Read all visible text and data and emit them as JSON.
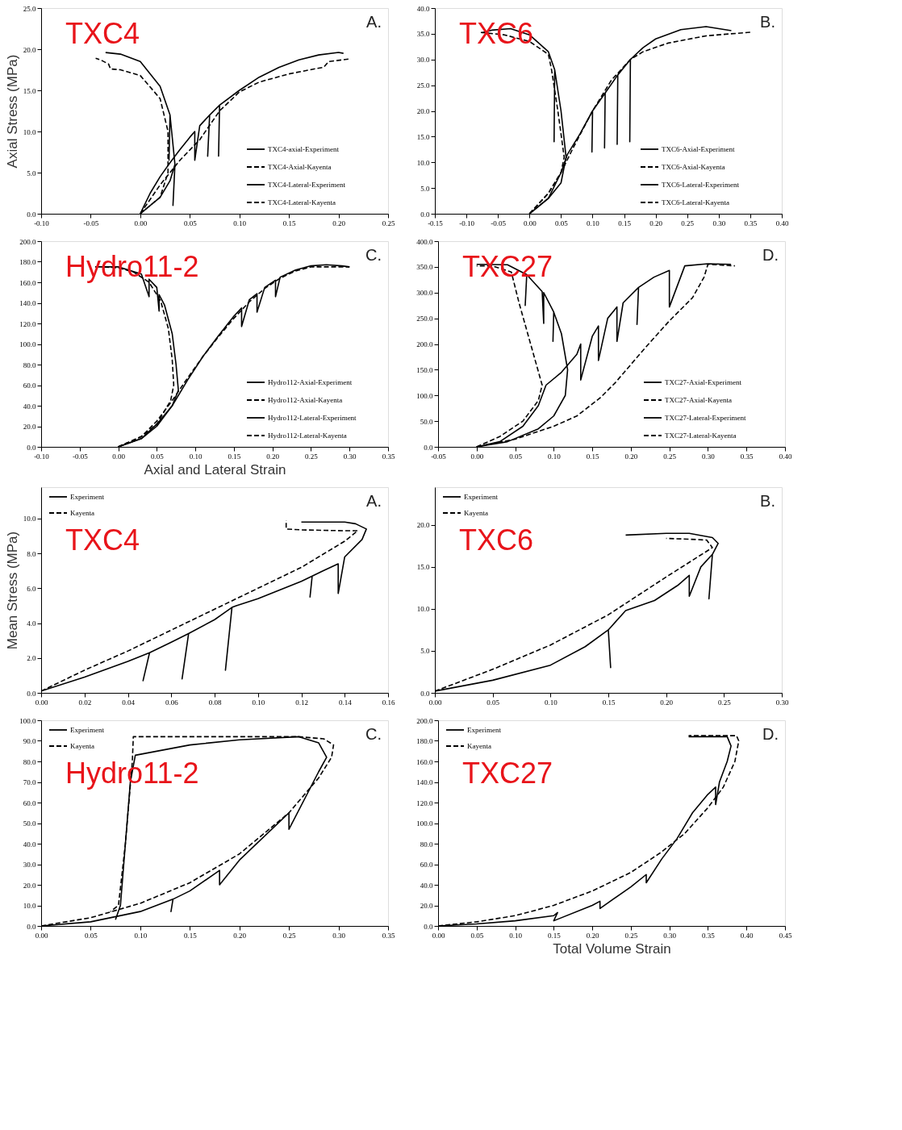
{
  "chart_data": [
    {
      "type": "line",
      "ylabel": "Axial Stress (MPa)",
      "annotations": [
        "A.",
        "TXC4"
      ],
      "legend": "bottom right",
      "xlim": [
        -0.1,
        0.25
      ],
      "ylim": [
        0,
        25
      ],
      "xticks": [
        {
          "value": -0.1,
          "label": "-0.10"
        },
        {
          "value": -0.05,
          "label": "-0.05"
        },
        {
          "value": 0,
          "label": "0.00"
        },
        {
          "value": 0.05,
          "label": "0.05"
        },
        {
          "value": 0.1,
          "label": "0.10"
        },
        {
          "value": 0.15,
          "label": "0.15"
        },
        {
          "value": 0.2,
          "label": "0.20"
        },
        {
          "value": 0.25,
          "label": "0.25"
        }
      ],
      "yticks": [
        {
          "value": 0,
          "label": "0.0"
        },
        {
          "value": 5,
          "label": "5.0"
        },
        {
          "value": 10,
          "label": "10.0"
        },
        {
          "value": 15,
          "label": "15.0"
        },
        {
          "value": 20,
          "label": "20.0"
        },
        {
          "value": 25,
          "label": "25.0"
        }
      ],
      "series": [
        {
          "name": "TXC4-axial-Experiment",
          "color": "#000000",
          "line_style": "solid",
          "x": [
            0,
            0.01,
            0.02,
            0.03,
            0.04,
            0.05,
            0.055,
            0.055,
            0.06,
            0.07,
            0.068,
            0.07,
            0.08,
            0.079,
            0.08,
            0.1,
            0.12,
            0.14,
            0.16,
            0.18,
            0.2,
            0.205
          ],
          "values": [
            0,
            2.5,
            4.5,
            6.2,
            7.8,
            9.3,
            10.0,
            6.5,
            10.7,
            12.0,
            7.0,
            12.0,
            13.2,
            7.0,
            13.2,
            15.0,
            16.6,
            17.8,
            18.7,
            19.3,
            19.6,
            19.5
          ]
        },
        {
          "name": "TXC4-Axial-Kayenta",
          "color": "#000000",
          "line_style": "dashed",
          "x": [
            0,
            0.02,
            0.04,
            0.06,
            0.08,
            0.1,
            0.12,
            0.15,
            0.18,
            0.185,
            0.19,
            0.21
          ],
          "values": [
            0,
            3.5,
            6.5,
            9,
            12.5,
            14.8,
            16,
            17,
            17.7,
            17.8,
            18.5,
            18.8
          ]
        },
        {
          "name": "TXC4-Lateral-Experiment",
          "color": "#000000",
          "line_style": "solid",
          "x": [
            0,
            0.02,
            0.03,
            0.035,
            0.033,
            0.035,
            0.03,
            0.029,
            0.03,
            0.02,
            0.0,
            -0.02,
            -0.035
          ],
          "values": [
            0,
            2,
            4,
            6,
            1,
            6,
            12,
            6.5,
            12,
            15.5,
            18.5,
            19.4,
            19.6
          ]
        },
        {
          "name": "TXC4-Lateral-Kayenta",
          "color": "#000000",
          "line_style": "dashed",
          "x": [
            0,
            0.02,
            0.028,
            0.028,
            0.02,
            0.0,
            -0.02,
            -0.03,
            -0.032,
            -0.04,
            -0.045
          ],
          "values": [
            0,
            2,
            5,
            10,
            14,
            16.8,
            17.5,
            17.6,
            18.2,
            18.7,
            18.9
          ]
        }
      ]
    },
    {
      "type": "line",
      "annotations": [
        "B.",
        "TXC6"
      ],
      "legend": "bottom right",
      "xlim": [
        -0.15,
        0.4
      ],
      "ylim": [
        0,
        40
      ],
      "xticks": [
        {
          "value": -0.15,
          "label": "-0.15"
        },
        {
          "value": -0.1,
          "label": "-0.10"
        },
        {
          "value": -0.05,
          "label": "-0.05"
        },
        {
          "value": 0,
          "label": "0.00"
        },
        {
          "value": 0.05,
          "label": "0.05"
        },
        {
          "value": 0.1,
          "label": "0.10"
        },
        {
          "value": 0.15,
          "label": "0.15"
        },
        {
          "value": 0.2,
          "label": "0.20"
        },
        {
          "value": 0.25,
          "label": "0.25"
        },
        {
          "value": 0.3,
          "label": "0.30"
        },
        {
          "value": 0.35,
          "label": "0.35"
        },
        {
          "value": 0.4,
          "label": "0.40"
        }
      ],
      "yticks": [
        {
          "value": 0,
          "label": "0.0"
        },
        {
          "value": 5,
          "label": "5.0"
        },
        {
          "value": 10,
          "label": "10.0"
        },
        {
          "value": 15,
          "label": "15.0"
        },
        {
          "value": 20,
          "label": "20.0"
        },
        {
          "value": 25,
          "label": "25.0"
        },
        {
          "value": 30,
          "label": "30.0"
        },
        {
          "value": 35,
          "label": "35.0"
        },
        {
          "value": 40,
          "label": "40.0"
        }
      ],
      "series": [
        {
          "name": "TXC6-Axial-Experiment",
          "color": "#000000",
          "line_style": "solid",
          "x": [
            0,
            0.03,
            0.05,
            0.06,
            0.08,
            0.1,
            0.099,
            0.1,
            0.12,
            0.119,
            0.12,
            0.14,
            0.139,
            0.14,
            0.16,
            0.159,
            0.16,
            0.18,
            0.2,
            0.24,
            0.28,
            0.32
          ],
          "values": [
            0,
            3,
            8,
            11.5,
            15.5,
            20,
            12,
            20,
            23.5,
            12.8,
            23.5,
            27,
            13.5,
            27,
            30,
            14,
            30,
            32.3,
            34,
            35.8,
            36.4,
            35.6
          ]
        },
        {
          "name": "TXC6-Axial-Kayenta",
          "color": "#000000",
          "line_style": "dashed",
          "x": [
            0,
            0.03,
            0.05,
            0.07,
            0.1,
            0.13,
            0.16,
            0.18,
            0.22,
            0.28,
            0.35
          ],
          "values": [
            0,
            4,
            8,
            13,
            20,
            26,
            30,
            31.5,
            33.2,
            34.6,
            35.3
          ]
        },
        {
          "name": "TXC6-Lateral-Experiment",
          "color": "#000000",
          "line_style": "solid",
          "x": [
            0,
            0.03,
            0.05,
            0.058,
            0.05,
            0.04,
            0.039,
            0.04,
            0.03,
            0.0,
            -0.03,
            -0.06,
            -0.075
          ],
          "values": [
            0,
            3,
            6,
            11,
            20,
            28,
            14,
            28,
            31.5,
            34.8,
            36,
            35.7,
            35.2
          ]
        },
        {
          "name": "TXC6-Lateral-Kayenta",
          "color": "#000000",
          "line_style": "dashed",
          "x": [
            0,
            0.03,
            0.05,
            0.055,
            0.045,
            0.035,
            0.03,
            0.0,
            -0.04,
            -0.08
          ],
          "values": [
            0,
            4,
            8,
            11,
            20,
            28,
            31,
            33.5,
            34.8,
            35.3
          ]
        }
      ]
    },
    {
      "type": "line",
      "xlabel": "Axial and Lateral Strain",
      "annotations": [
        "C.",
        "Hydro11-2"
      ],
      "legend": "bottom right",
      "xlim": [
        -0.1,
        0.35
      ],
      "ylim": [
        0,
        200
      ],
      "xticks": [
        {
          "value": -0.1,
          "label": "-0.10"
        },
        {
          "value": -0.05,
          "label": "-0.05"
        },
        {
          "value": 0,
          "label": "0.00"
        },
        {
          "value": 0.05,
          "label": "0.05"
        },
        {
          "value": 0.1,
          "label": "0.10"
        },
        {
          "value": 0.15,
          "label": "0.15"
        },
        {
          "value": 0.2,
          "label": "0.20"
        },
        {
          "value": 0.25,
          "label": "0.25"
        },
        {
          "value": 0.3,
          "label": "0.30"
        },
        {
          "value": 0.35,
          "label": "0.35"
        }
      ],
      "yticks": [
        {
          "value": 0,
          "label": "0.0"
        },
        {
          "value": 20,
          "label": "20.0"
        },
        {
          "value": 40,
          "label": "40.0"
        },
        {
          "value": 60,
          "label": "60.0"
        },
        {
          "value": 80,
          "label": "80.0"
        },
        {
          "value": 100,
          "label": "100.0"
        },
        {
          "value": 120,
          "label": "120.0"
        },
        {
          "value": 140,
          "label": "140.0"
        },
        {
          "value": 160,
          "label": "160.0"
        },
        {
          "value": 180,
          "label": "180.0"
        },
        {
          "value": 200,
          "label": "200.0"
        }
      ],
      "series": [
        {
          "name": "Hydro112-Axial-Experiment",
          "color": "#000000",
          "line_style": "solid",
          "x": [
            0,
            0.03,
            0.05,
            0.07,
            0.09,
            0.11,
            0.13,
            0.15,
            0.16,
            0.16,
            0.17,
            0.18,
            0.18,
            0.19,
            0.204,
            0.204,
            0.21,
            0.23,
            0.25,
            0.27,
            0.29,
            0.3
          ],
          "values": [
            0,
            8,
            22,
            40,
            65,
            88,
            108,
            127,
            135,
            117,
            143,
            149,
            131,
            155,
            162,
            146,
            165,
            172,
            176,
            177,
            176,
            175
          ]
        },
        {
          "name": "Hydro112-Axial-Kayenta",
          "color": "#000000",
          "line_style": "dashed",
          "x": [
            0,
            0.03,
            0.05,
            0.07,
            0.09,
            0.11,
            0.13,
            0.15,
            0.17,
            0.19,
            0.21,
            0.23,
            0.25,
            0.28,
            0.3
          ],
          "values": [
            0,
            10,
            25,
            45,
            67,
            88,
            107,
            125,
            141,
            154,
            164,
            171,
            175,
            175,
            175
          ]
        },
        {
          "name": "Hydro112-Lateral-Experiment",
          "color": "#000000",
          "line_style": "solid",
          "x": [
            0,
            0.03,
            0.05,
            0.07,
            0.078,
            0.075,
            0.07,
            0.06,
            0.053,
            0.053,
            0.05,
            0.04,
            0.04,
            0.03,
            0.0,
            -0.03
          ],
          "values": [
            0,
            8,
            20,
            40,
            55,
            80,
            110,
            138,
            148,
            132,
            155,
            163,
            146,
            168,
            175,
            175
          ]
        },
        {
          "name": "Hydro112-Lateral-Kayenta",
          "color": "#000000",
          "line_style": "dashed",
          "x": [
            0,
            0.03,
            0.05,
            0.068,
            0.072,
            0.07,
            0.065,
            0.055,
            0.04,
            0.02,
            0.0,
            -0.02
          ],
          "values": [
            0,
            10,
            22,
            45,
            60,
            85,
            115,
            142,
            160,
            170,
            174,
            175
          ]
        }
      ]
    },
    {
      "type": "line",
      "annotations": [
        "D.",
        "TXC27"
      ],
      "legend": "bottom right",
      "xlim": [
        -0.05,
        0.4
      ],
      "ylim": [
        0,
        400
      ],
      "xticks": [
        {
          "value": -0.05,
          "label": "-0.05"
        },
        {
          "value": 0,
          "label": "0.00"
        },
        {
          "value": 0.05,
          "label": "0.05"
        },
        {
          "value": 0.1,
          "label": "0.10"
        },
        {
          "value": 0.15,
          "label": "0.15"
        },
        {
          "value": 0.2,
          "label": "0.20"
        },
        {
          "value": 0.25,
          "label": "0.25"
        },
        {
          "value": 0.3,
          "label": "0.30"
        },
        {
          "value": 0.35,
          "label": "0.35"
        },
        {
          "value": 0.4,
          "label": "0.40"
        }
      ],
      "yticks": [
        {
          "value": 0,
          "label": "0.0"
        },
        {
          "value": 50,
          "label": "50.0"
        },
        {
          "value": 100,
          "label": "100.0"
        },
        {
          "value": 150,
          "label": "150.0"
        },
        {
          "value": 200,
          "label": "200.0"
        },
        {
          "value": 250,
          "label": "250.0"
        },
        {
          "value": 300,
          "label": "300.0"
        },
        {
          "value": 350,
          "label": "350.0"
        },
        {
          "value": 400,
          "label": "400.0"
        }
      ],
      "series": [
        {
          "name": "TXC27-Axial-Experiment",
          "color": "#000000",
          "line_style": "solid",
          "x": [
            0,
            0.03,
            0.06,
            0.08,
            0.09,
            0.11,
            0.13,
            0.135,
            0.135,
            0.15,
            0.158,
            0.158,
            0.17,
            0.182,
            0.182,
            0.19,
            0.21,
            0.208,
            0.21,
            0.23,
            0.25,
            0.25,
            0.27,
            0.3,
            0.33
          ],
          "values": [
            0,
            10,
            40,
            80,
            120,
            145,
            180,
            200,
            130,
            215,
            235,
            168,
            250,
            272,
            205,
            280,
            310,
            238,
            310,
            330,
            343,
            272,
            352,
            356,
            355
          ]
        },
        {
          "name": "TXC27-Axial-Kayenta",
          "color": "#000000",
          "line_style": "dashed",
          "x": [
            0,
            0.05,
            0.1,
            0.13,
            0.16,
            0.18,
            0.2,
            0.22,
            0.25,
            0.28,
            0.295,
            0.3,
            0.335
          ],
          "values": [
            0,
            15,
            40,
            60,
            95,
            125,
            160,
            195,
            245,
            290,
            330,
            355,
            352
          ]
        },
        {
          "name": "TXC27-Lateral-Experiment",
          "color": "#000000",
          "line_style": "solid",
          "x": [
            0,
            0.04,
            0.08,
            0.1,
            0.115,
            0.118,
            0.11,
            0.1,
            0.099,
            0.1,
            0.087,
            0.087,
            0.085,
            0.065,
            0.063,
            0.065,
            0.04,
            0.0
          ],
          "values": [
            0,
            10,
            35,
            60,
            100,
            150,
            220,
            262,
            205,
            262,
            300,
            240,
            302,
            335,
            275,
            335,
            354,
            355
          ]
        },
        {
          "name": "TXC27-Lateral-Kayenta",
          "color": "#000000",
          "line_style": "dashed",
          "x": [
            0,
            0.03,
            0.06,
            0.08,
            0.085,
            0.07,
            0.055,
            0.045,
            0.02,
            0.0
          ],
          "values": [
            0,
            20,
            50,
            90,
            120,
            200,
            280,
            340,
            352,
            352
          ]
        }
      ]
    },
    {
      "type": "line",
      "ylabel": "Mean Stress (MPa)",
      "annotations": [
        "A.",
        "TXC4"
      ],
      "legend": "top left",
      "xlim": [
        0,
        0.16
      ],
      "ylim": [
        0,
        11.8
      ],
      "xticks": [
        {
          "value": 0,
          "label": "0.00"
        },
        {
          "value": 0.02,
          "label": "0.02"
        },
        {
          "value": 0.04,
          "label": "0.04"
        },
        {
          "value": 0.06,
          "label": "0.06"
        },
        {
          "value": 0.08,
          "label": "0.08"
        },
        {
          "value": 0.1,
          "label": "0.10"
        },
        {
          "value": 0.12,
          "label": "0.12"
        },
        {
          "value": 0.14,
          "label": "0.14"
        },
        {
          "value": 0.16,
          "label": "0.16"
        }
      ],
      "yticks": [
        {
          "value": 0,
          "label": "0.0"
        },
        {
          "value": 2,
          "label": "2.0"
        },
        {
          "value": 4,
          "label": "4.0"
        },
        {
          "value": 6,
          "label": "6.0"
        },
        {
          "value": 8,
          "label": "8.0"
        },
        {
          "value": 10,
          "label": "10.0"
        }
      ],
      "series": [
        {
          "name": "Experiment",
          "color": "#000000",
          "line_style": "solid",
          "x": [
            0,
            0.02,
            0.04,
            0.05,
            0.047,
            0.05,
            0.06,
            0.068,
            0.065,
            0.068,
            0.08,
            0.088,
            0.085,
            0.088,
            0.09,
            0.1,
            0.11,
            0.12,
            0.125,
            0.124,
            0.125,
            0.13,
            0.137,
            0.137,
            0.14,
            0.148,
            0.15,
            0.145,
            0.14,
            0.12
          ],
          "values": [
            0.1,
            0.9,
            1.8,
            2.3,
            0.7,
            2.3,
            2.9,
            3.4,
            0.8,
            3.4,
            4.2,
            4.9,
            1.3,
            4.9,
            5.0,
            5.4,
            5.9,
            6.4,
            6.7,
            5.5,
            6.7,
            7.0,
            7.4,
            5.7,
            7.8,
            8.8,
            9.4,
            9.7,
            9.8,
            9.8
          ]
        },
        {
          "name": "Kayenta",
          "color": "#000000",
          "line_style": "dashed",
          "x": [
            0,
            0.02,
            0.04,
            0.06,
            0.08,
            0.1,
            0.12,
            0.14,
            0.146,
            0.14,
            0.12,
            0.113,
            0.113
          ],
          "values": [
            0.1,
            1.3,
            2.4,
            3.6,
            4.8,
            6.0,
            7.2,
            8.7,
            9.3,
            9.3,
            9.35,
            9.4,
            9.9
          ]
        }
      ]
    },
    {
      "type": "line",
      "annotations": [
        "B.",
        "TXC6"
      ],
      "legend": "top left",
      "xlim": [
        0,
        0.3
      ],
      "ylim": [
        0,
        24.5
      ],
      "xticks": [
        {
          "value": 0,
          "label": "0.00"
        },
        {
          "value": 0.05,
          "label": "0.05"
        },
        {
          "value": 0.1,
          "label": "0.10"
        },
        {
          "value": 0.15,
          "label": "0.15"
        },
        {
          "value": 0.2,
          "label": "0.20"
        },
        {
          "value": 0.25,
          "label": "0.25"
        },
        {
          "value": 0.3,
          "label": "0.30"
        }
      ],
      "yticks": [
        {
          "value": 0,
          "label": "0.0"
        },
        {
          "value": 5,
          "label": "5.0"
        },
        {
          "value": 10,
          "label": "10.0"
        },
        {
          "value": 15,
          "label": "15.0"
        },
        {
          "value": 20,
          "label": "20.0"
        }
      ],
      "series": [
        {
          "name": "Experiment",
          "color": "#000000",
          "line_style": "solid",
          "x": [
            0,
            0.05,
            0.1,
            0.13,
            0.15,
            0.152,
            0.15,
            0.165,
            0.19,
            0.21,
            0.22,
            0.22,
            0.23,
            0.24,
            0.237,
            0.24,
            0.245,
            0.24,
            0.22,
            0.2,
            0.165
          ],
          "values": [
            0.2,
            1.5,
            3.3,
            5.5,
            7.5,
            3,
            7.5,
            9.8,
            11,
            12.8,
            14,
            11.5,
            15,
            16.5,
            11.2,
            16.5,
            17.8,
            18.5,
            19,
            19,
            18.8
          ]
        },
        {
          "name": "Kayenta",
          "color": "#000000",
          "line_style": "dashed",
          "x": [
            0,
            0.05,
            0.1,
            0.15,
            0.2,
            0.24,
            0.235,
            0.22,
            0.2
          ],
          "values": [
            0.2,
            2.8,
            5.7,
            9.3,
            13.8,
            17.3,
            18.2,
            18.3,
            18.4
          ]
        }
      ]
    },
    {
      "type": "line",
      "annotations": [
        "C.",
        "Hydro11-2"
      ],
      "legend": "top left",
      "xlim": [
        0,
        0.35
      ],
      "ylim": [
        0,
        100
      ],
      "xticks": [
        {
          "value": 0,
          "label": "0.00"
        },
        {
          "value": 0.05,
          "label": "0.05"
        },
        {
          "value": 0.1,
          "label": "0.10"
        },
        {
          "value": 0.15,
          "label": "0.15"
        },
        {
          "value": 0.2,
          "label": "0.20"
        },
        {
          "value": 0.25,
          "label": "0.25"
        },
        {
          "value": 0.3,
          "label": "0.30"
        },
        {
          "value": 0.35,
          "label": "0.35"
        }
      ],
      "yticks": [
        {
          "value": 0,
          "label": "0.0"
        },
        {
          "value": 10,
          "label": "10.0"
        },
        {
          "value": 20,
          "label": "20.0"
        },
        {
          "value": 30,
          "label": "30.0"
        },
        {
          "value": 40,
          "label": "40.0"
        },
        {
          "value": 50,
          "label": "50.0"
        },
        {
          "value": 60,
          "label": "60.0"
        },
        {
          "value": 70,
          "label": "70.0"
        },
        {
          "value": 80,
          "label": "80.0"
        },
        {
          "value": 90,
          "label": "90.0"
        },
        {
          "value": 100,
          "label": "100.0"
        }
      ],
      "series": [
        {
          "name": "Experiment",
          "color": "#000000",
          "line_style": "solid",
          "x": [
            0,
            0.05,
            0.1,
            0.133,
            0.131,
            0.133,
            0.15,
            0.18,
            0.18,
            0.2,
            0.25,
            0.25,
            0.28,
            0.288,
            0.28,
            0.26,
            0.2,
            0.15,
            0.095,
            0.09,
            0.085,
            0.08,
            0.075
          ],
          "values": [
            0,
            2,
            7,
            13,
            7,
            13,
            17,
            27,
            20,
            32,
            55,
            47,
            75,
            82,
            89,
            92,
            90.5,
            88,
            83,
            70,
            40,
            10,
            3
          ]
        },
        {
          "name": "Kayenta",
          "color": "#000000",
          "line_style": "dashed",
          "x": [
            0,
            0.05,
            0.1,
            0.15,
            0.2,
            0.25,
            0.28,
            0.293,
            0.295,
            0.285,
            0.26,
            0.2,
            0.093,
            0.092,
            0.085,
            0.078,
            0.07
          ],
          "values": [
            0,
            4,
            11,
            21,
            35,
            55,
            72,
            82,
            88,
            91,
            92,
            92,
            92,
            80,
            40,
            10,
            7
          ]
        }
      ]
    },
    {
      "type": "line",
      "xlabel": "Total Volume Strain",
      "annotations": [
        "D.",
        "TXC27"
      ],
      "legend": "top left",
      "xlim": [
        0,
        0.45
      ],
      "ylim": [
        0,
        200
      ],
      "xticks": [
        {
          "value": 0,
          "label": "0.00"
        },
        {
          "value": 0.05,
          "label": "0.05"
        },
        {
          "value": 0.1,
          "label": "0.10"
        },
        {
          "value": 0.15,
          "label": "0.15"
        },
        {
          "value": 0.2,
          "label": "0.20"
        },
        {
          "value": 0.25,
          "label": "0.25"
        },
        {
          "value": 0.3,
          "label": "0.30"
        },
        {
          "value": 0.35,
          "label": "0.35"
        },
        {
          "value": 0.4,
          "label": "0.40"
        },
        {
          "value": 0.45,
          "label": "0.45"
        }
      ],
      "yticks": [
        {
          "value": 0,
          "label": "0.0"
        },
        {
          "value": 20,
          "label": "20.0"
        },
        {
          "value": 40,
          "label": "40.0"
        },
        {
          "value": 60,
          "label": "60.0"
        },
        {
          "value": 80,
          "label": "80.0"
        },
        {
          "value": 100,
          "label": "100.0"
        },
        {
          "value": 120,
          "label": "120.0"
        },
        {
          "value": 140,
          "label": "140.0"
        },
        {
          "value": 160,
          "label": "160.0"
        },
        {
          "value": 180,
          "label": "180.0"
        },
        {
          "value": 200,
          "label": "200.0"
        }
      ],
      "series": [
        {
          "name": "Experiment",
          "color": "#000000",
          "line_style": "solid",
          "x": [
            0,
            0.05,
            0.1,
            0.15,
            0.155,
            0.15,
            0.2,
            0.21,
            0.21,
            0.25,
            0.27,
            0.27,
            0.29,
            0.31,
            0.33,
            0.35,
            0.36,
            0.36,
            0.365,
            0.375,
            0.38,
            0.375,
            0.35,
            0.325
          ],
          "values": [
            0,
            2,
            5,
            10,
            13,
            5,
            20,
            24,
            17,
            38,
            50,
            42,
            65,
            85,
            110,
            128,
            135,
            118,
            140,
            160,
            175,
            184,
            184,
            184
          ]
        },
        {
          "name": "Kayenta",
          "color": "#000000",
          "line_style": "dashed",
          "x": [
            0,
            0.05,
            0.1,
            0.15,
            0.2,
            0.25,
            0.29,
            0.32,
            0.35,
            0.37,
            0.385,
            0.39,
            0.387,
            0.36,
            0.325
          ],
          "values": [
            0,
            4,
            10,
            20,
            34,
            52,
            72,
            90,
            115,
            135,
            160,
            180,
            185,
            185,
            185
          ]
        }
      ]
    }
  ]
}
